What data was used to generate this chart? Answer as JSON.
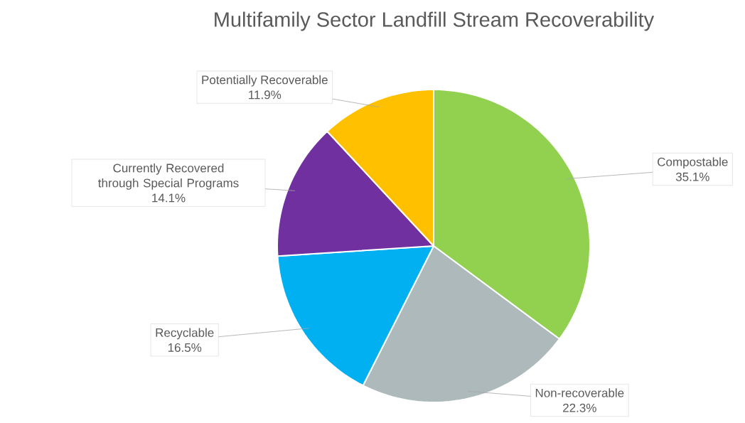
{
  "chart_data": {
    "type": "pie",
    "title": "Multifamily Sector Landfill Stream Recoverability",
    "categories": [
      "Compostable",
      "Non-recoverable",
      "Recyclable",
      "Currently Recovered through Special Programs",
      "Potentially Recoverable"
    ],
    "values": [
      35.1,
      22.3,
      16.5,
      14.1,
      11.9
    ],
    "colors": [
      "#92d050",
      "#adb9ba",
      "#00b0f0",
      "#7030a0",
      "#ffc000"
    ],
    "value_labels": [
      "35.1%",
      "22.3%",
      "16.5%",
      "14.1%",
      "11.9%"
    ]
  }
}
